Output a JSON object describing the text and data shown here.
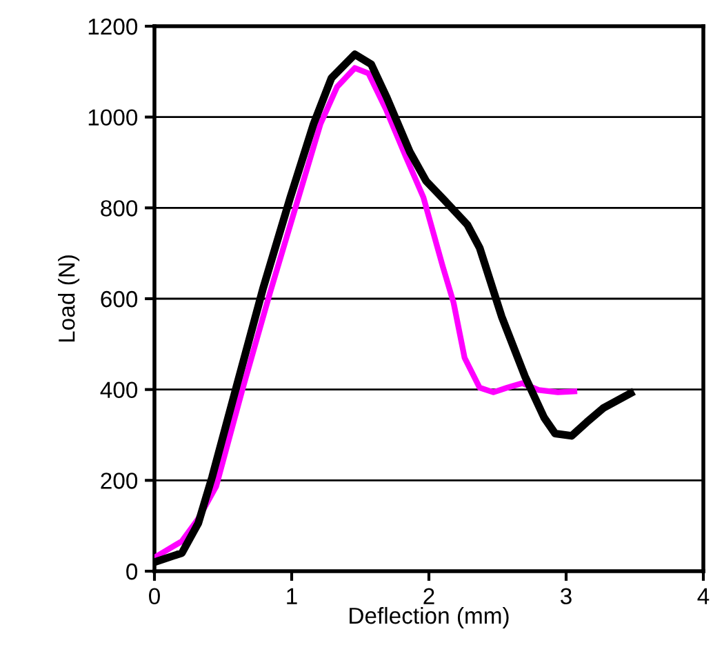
{
  "chart_data": {
    "type": "line",
    "xlabel": "Deflection (mm)",
    "ylabel": "Load (N)",
    "xlim": [
      0,
      4
    ],
    "xticks": [
      0,
      1,
      2,
      3,
      4
    ],
    "ylim": [
      0,
      1200
    ],
    "yticks": [
      0,
      200,
      400,
      600,
      800,
      1000,
      1200
    ],
    "grid": "y",
    "legend": false,
    "marker": "none",
    "line_style": "solid",
    "series": [
      {
        "color": "#000000",
        "x": [
          0,
          0.2,
          0.32,
          0.42,
          0.6,
          0.79,
          0.99,
          1.16,
          1.29,
          1.46,
          1.58,
          1.69,
          1.86,
          1.98,
          2.11,
          2.28,
          2.37,
          2.53,
          2.7,
          2.84,
          2.92,
          3.04,
          3.15,
          3.27,
          3.47
        ],
        "values": [
          20,
          40,
          106,
          207,
          409,
          621,
          823,
          985,
          1086,
          1138,
          1116,
          1045,
          924,
          859,
          818,
          763,
          712,
          561,
          429,
          338,
          303,
          298,
          328,
          359,
          392
        ]
      },
      {
        "color": "#ff00ff",
        "x": [
          0,
          0.2,
          0.32,
          0.45,
          0.64,
          0.84,
          1.04,
          1.21,
          1.33,
          1.46,
          1.56,
          1.69,
          1.83,
          1.96,
          2.1,
          2.18,
          2.26,
          2.37,
          2.47,
          2.57,
          2.68,
          2.8,
          2.94,
          3.06
        ],
        "values": [
          30,
          66,
          116,
          187,
          399,
          611,
          813,
          985,
          1066,
          1108,
          1096,
          1015,
          914,
          823,
          672,
          591,
          470,
          404,
          394,
          404,
          414,
          399,
          394,
          396
        ]
      }
    ]
  }
}
